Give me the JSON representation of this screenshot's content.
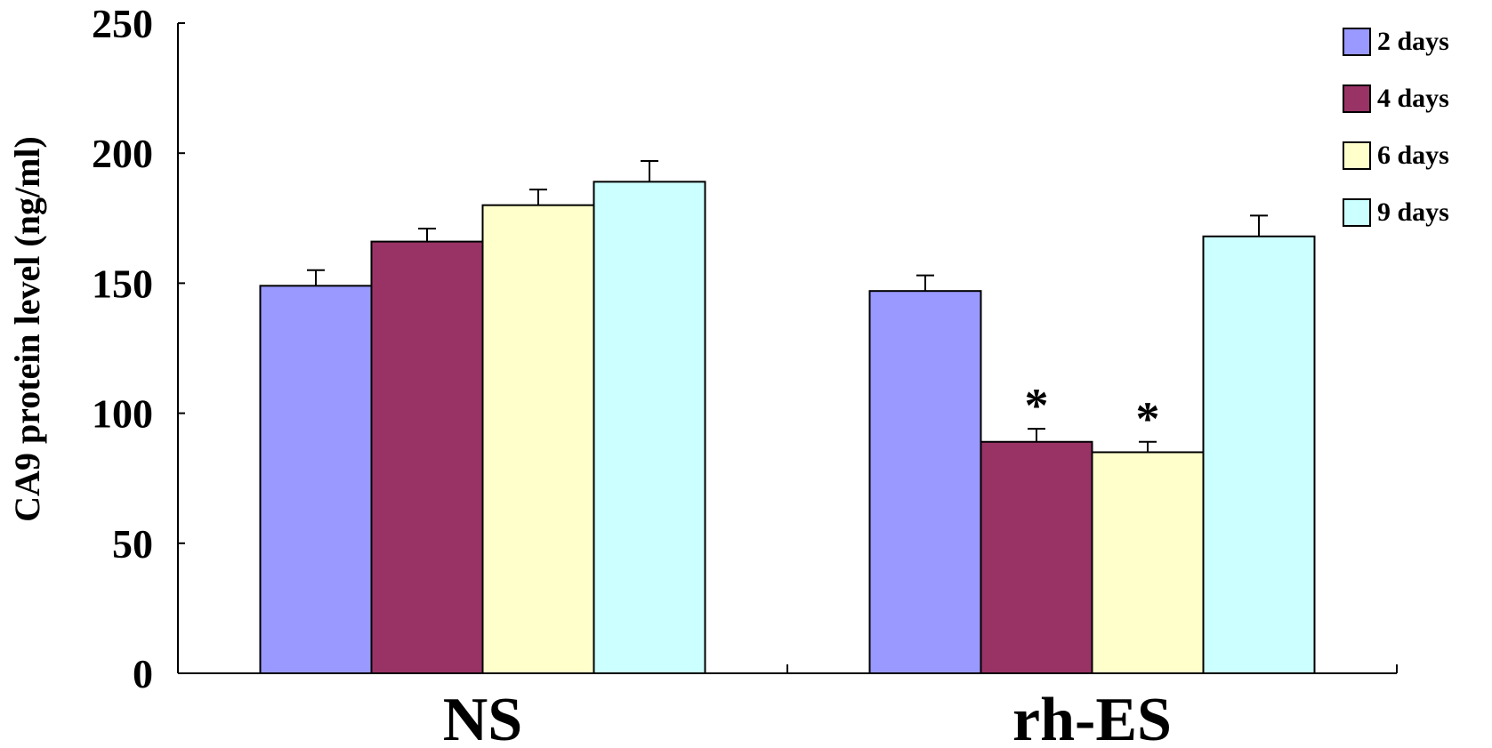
{
  "chart_data": {
    "type": "bar",
    "title": "",
    "xlabel": "",
    "ylabel": "CA9 protein level (ng/ml)",
    "ylim": [
      0,
      250
    ],
    "yticks": [
      "0",
      "50",
      "100",
      "150",
      "200",
      "250"
    ],
    "grid": false,
    "legend_position": "top-right",
    "categories": [
      "NS",
      "rh-ES"
    ],
    "series": [
      {
        "name": "2 days",
        "color": "#9999ff",
        "values": [
          149,
          147
        ],
        "errors": [
          6,
          6
        ]
      },
      {
        "name": "4 days",
        "color": "#993366",
        "values": [
          166,
          89
        ],
        "errors": [
          5,
          5
        ]
      },
      {
        "name": "6 days",
        "color": "#ffffcc",
        "values": [
          180,
          85
        ],
        "errors": [
          6,
          4
        ]
      },
      {
        "name": "9 days",
        "color": "#ccffff",
        "values": [
          189,
          168
        ],
        "errors": [
          8,
          8
        ]
      }
    ],
    "annotations": [
      {
        "text": "*",
        "category": "rh-ES",
        "series": "4 days"
      },
      {
        "text": "*",
        "category": "rh-ES",
        "series": "6 days"
      }
    ]
  }
}
